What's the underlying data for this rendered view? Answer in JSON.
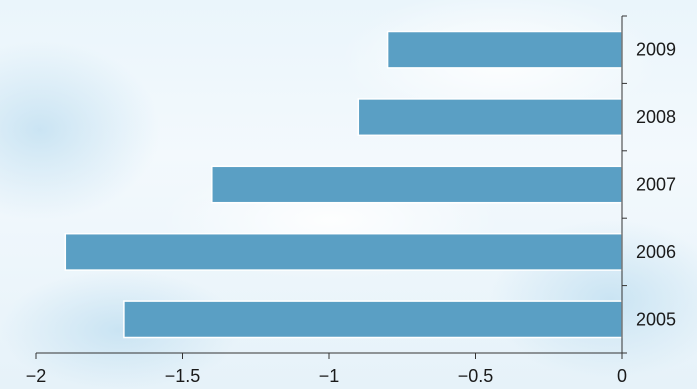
{
  "chart_data": {
    "type": "bar",
    "orientation": "horizontal",
    "categories": [
      "2005",
      "2006",
      "2007",
      "2008",
      "2009"
    ],
    "values": [
      -1.7,
      -1.9,
      -1.4,
      -0.9,
      -0.8
    ],
    "x_ticks": [
      "−2",
      "−1.5",
      "−1",
      "−0.5",
      "0"
    ],
    "x_tick_values": [
      -2,
      -1.5,
      -1,
      -0.5,
      0
    ],
    "xlim": [
      -2,
      0
    ],
    "title": "",
    "xlabel": "",
    "ylabel": "",
    "grid": false,
    "legend": "none",
    "y_axis_side": "right",
    "bar_color": "#5a9fc4",
    "bar_edge_color": "#ffffff",
    "background_color": "#eaf5fb"
  }
}
